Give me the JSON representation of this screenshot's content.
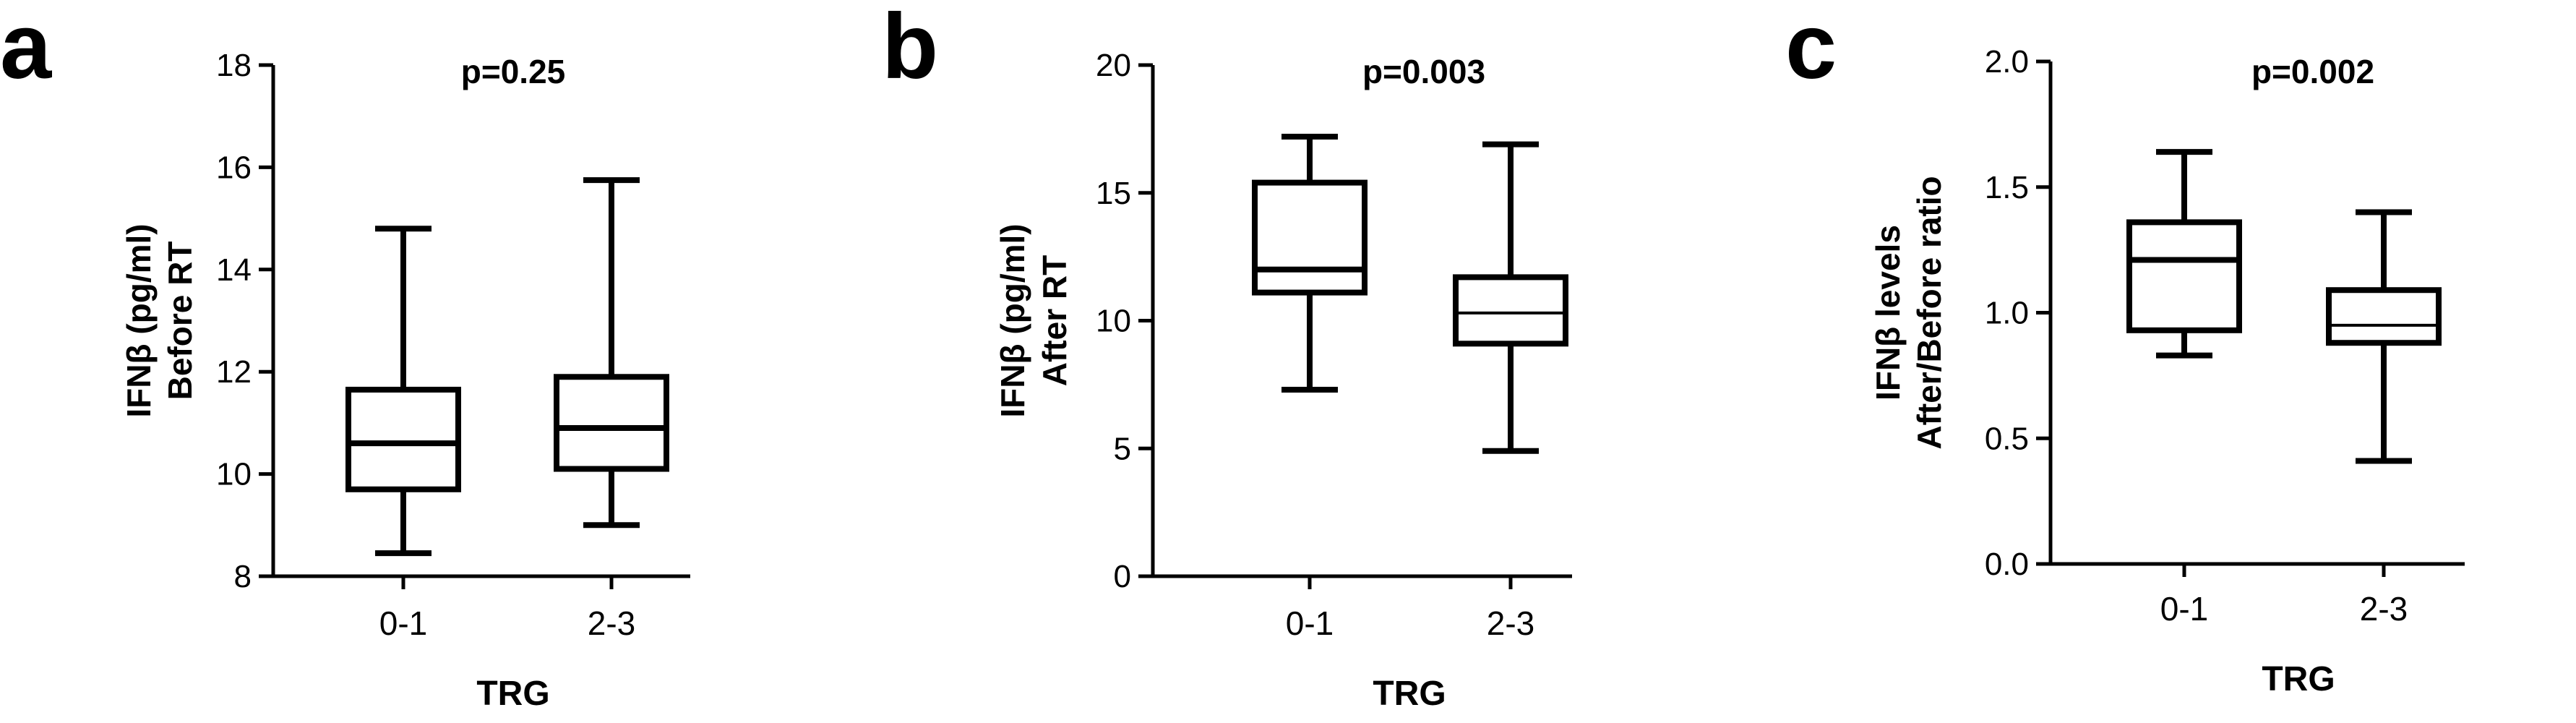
{
  "chart_data": [
    {
      "type": "box",
      "panel": "a",
      "title": "p=0.25",
      "xlabel": "TRG",
      "ylabel": [
        "IFNβ (pg/ml)",
        "Before RT"
      ],
      "ylim": [
        8,
        18
      ],
      "yticks": [
        "8",
        "10",
        "12",
        "14",
        "16",
        "18"
      ],
      "categories": [
        "0-1",
        "2-3"
      ],
      "boxes": [
        {
          "category": "0-1",
          "min": 8.45,
          "q1": 9.7,
          "median": 10.6,
          "q3": 11.65,
          "max": 14.8
        },
        {
          "category": "2-3",
          "min": 9.0,
          "q1": 10.1,
          "median": 10.9,
          "q3": 11.9,
          "max": 15.75
        }
      ]
    },
    {
      "type": "box",
      "panel": "b",
      "title": "p=0.003",
      "xlabel": "TRG",
      "ylabel": [
        "IFNβ (pg/ml)",
        "After RT"
      ],
      "ylim": [
        0,
        20
      ],
      "yticks": [
        "0",
        "5",
        "10",
        "15",
        "20"
      ],
      "categories": [
        "0-1",
        "2-3"
      ],
      "boxes": [
        {
          "category": "0-1",
          "min": 7.3,
          "q1": 11.1,
          "median": 12.0,
          "q3": 15.4,
          "max": 17.2
        },
        {
          "category": "2-3",
          "min": 4.9,
          "q1": 9.1,
          "median": 10.3,
          "q3": 11.7,
          "max": 16.9
        }
      ]
    },
    {
      "type": "box",
      "panel": "c",
      "title": "p=0.002",
      "xlabel": "TRG",
      "ylabel": [
        "IFNβ levels",
        "After/Before ratio"
      ],
      "ylim": [
        0,
        2
      ],
      "yticks": [
        "0.0",
        "0.5",
        "1.0",
        "1.5",
        "2.0"
      ],
      "categories": [
        "0-1",
        "2-3"
      ],
      "boxes": [
        {
          "category": "0-1",
          "min": 0.83,
          "q1": 0.93,
          "median": 1.21,
          "q3": 1.36,
          "max": 1.64
        },
        {
          "category": "2-3",
          "min": 0.41,
          "q1": 0.88,
          "median": 0.95,
          "q3": 1.09,
          "max": 1.4
        }
      ]
    }
  ]
}
